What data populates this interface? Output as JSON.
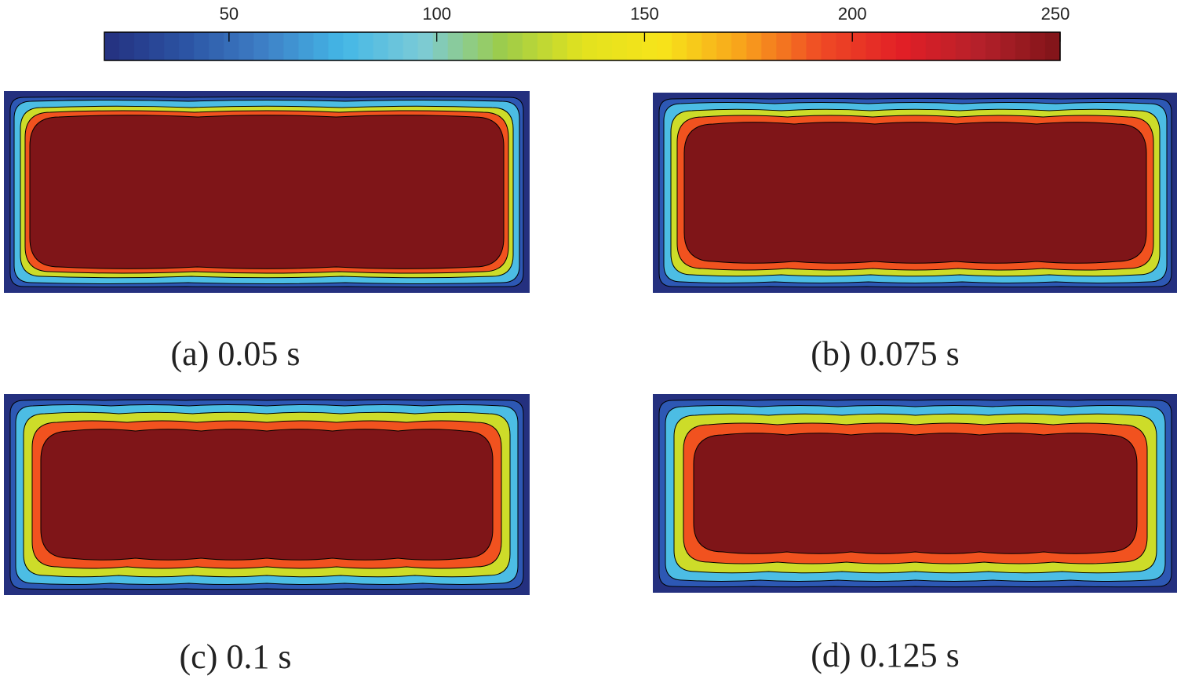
{
  "chart_data": {
    "type": "heatmap",
    "colorbar": {
      "range": [
        20,
        250
      ],
      "ticks": [
        50,
        100,
        150,
        200,
        250
      ],
      "colormap": [
        "#24307f",
        "#2b53a3",
        "#3e7fc6",
        "#44b7e6",
        "#7ccbd6",
        "#9ccc4a",
        "#e2e21e",
        "#f7e41a",
        "#f8a31b",
        "#ef4a25",
        "#e21f26",
        "#b4202a",
        "#7f1418"
      ]
    },
    "contour_levels": [
      {
        "color": "#24307f"
      },
      {
        "color": "#2d58b4"
      },
      {
        "color": "#4cbde4"
      },
      {
        "color": "#cddc29"
      },
      {
        "color": "#f1521f"
      },
      {
        "color": "#7f1518"
      }
    ],
    "panels": [
      {
        "id": "a",
        "caption": "(a) 0.05 s"
      },
      {
        "id": "b",
        "caption": "(b) 0.075 s"
      },
      {
        "id": "c",
        "caption": "(c) 0.1 s"
      },
      {
        "id": "d",
        "caption": "(d) 0.125 s"
      }
    ]
  }
}
